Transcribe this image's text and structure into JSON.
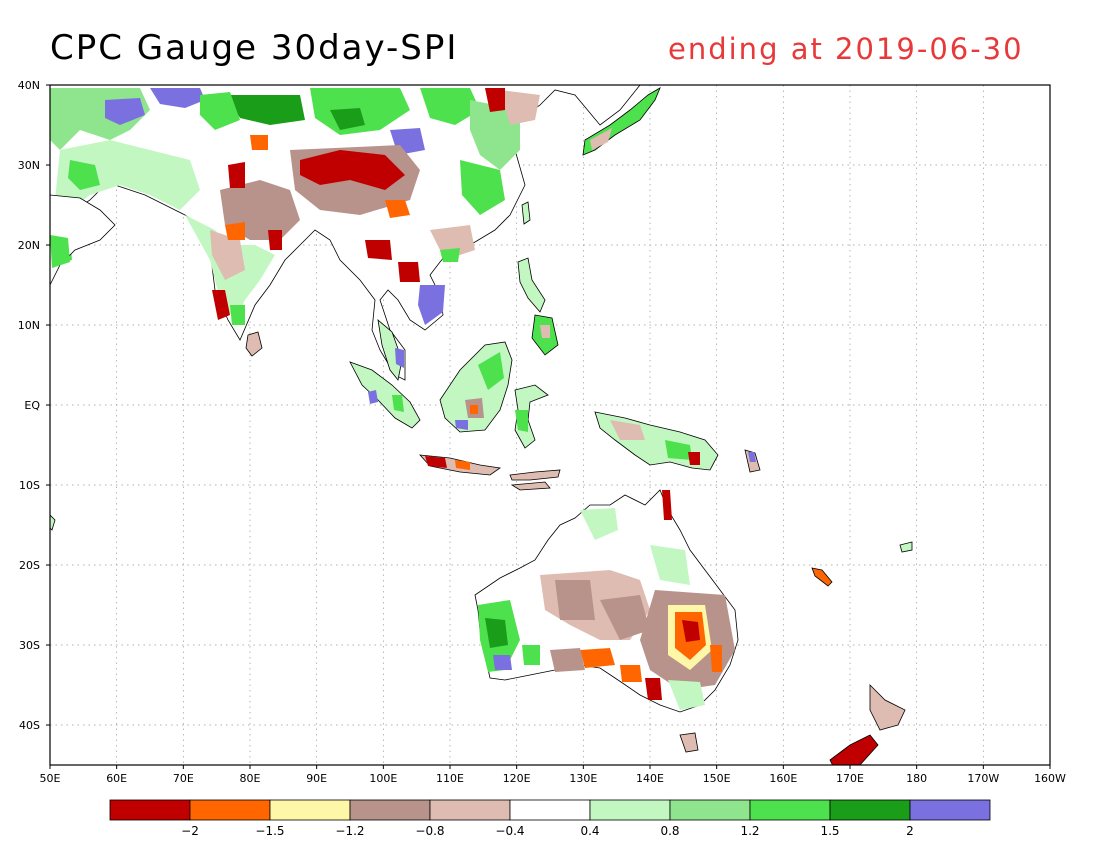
{
  "title": "CPC Gauge 30day-SPI",
  "subtitle": "ending at 2019-06-30",
  "map": {
    "lon_range": [
      50,
      200
    ],
    "lat_range": [
      -45,
      40
    ],
    "lat_ticks": [
      {
        "lat": 40,
        "label": "40N"
      },
      {
        "lat": 30,
        "label": "30N"
      },
      {
        "lat": 20,
        "label": "20N"
      },
      {
        "lat": 10,
        "label": "10N"
      },
      {
        "lat": 0,
        "label": "EQ"
      },
      {
        "lat": -10,
        "label": "10S"
      },
      {
        "lat": -20,
        "label": "20S"
      },
      {
        "lat": -30,
        "label": "30S"
      },
      {
        "lat": -40,
        "label": "40S"
      }
    ],
    "lon_ticks": [
      {
        "lon": 50,
        "label": "50E"
      },
      {
        "lon": 60,
        "label": "60E"
      },
      {
        "lon": 70,
        "label": "70E"
      },
      {
        "lon": 80,
        "label": "80E"
      },
      {
        "lon": 90,
        "label": "90E"
      },
      {
        "lon": 100,
        "label": "100E"
      },
      {
        "lon": 110,
        "label": "110E"
      },
      {
        "lon": 120,
        "label": "120E"
      },
      {
        "lon": 130,
        "label": "130E"
      },
      {
        "lon": 140,
        "label": "140E"
      },
      {
        "lon": 150,
        "label": "150E"
      },
      {
        "lon": 160,
        "label": "160E"
      },
      {
        "lon": 170,
        "label": "170E"
      },
      {
        "lon": 180,
        "label": "180"
      },
      {
        "lon": 190,
        "label": "170W"
      },
      {
        "lon": 200,
        "label": "160W"
      }
    ],
    "grid": true,
    "colors": {
      "ext_dry": "#c00000",
      "sev_dry": "#ff6600",
      "mod_dry": "#fff7a8",
      "dry": "#b7938b",
      "sl_dry": "#dfbcb1",
      "normal": "#ffffff",
      "sl_wet": "#c2f7c2",
      "wet": "#8ee58e",
      "mod_wet": "#4de14d",
      "sev_wet": "#1a9e1a",
      "ext_wet": "#7a70e0"
    }
  },
  "colorbar": {
    "colors": [
      "#c00000",
      "#ff6600",
      "#fff7a8",
      "#b7938b",
      "#dfbcb1",
      "#ffffff",
      "#c2f7c2",
      "#8ee58e",
      "#4de14d",
      "#1a9e1a",
      "#7a70e0"
    ],
    "labels": [
      "−2",
      "−1.5",
      "−1.2",
      "−0.8",
      "−0.4",
      "0.4",
      "0.8",
      "1.2",
      "1.5",
      "2"
    ]
  }
}
